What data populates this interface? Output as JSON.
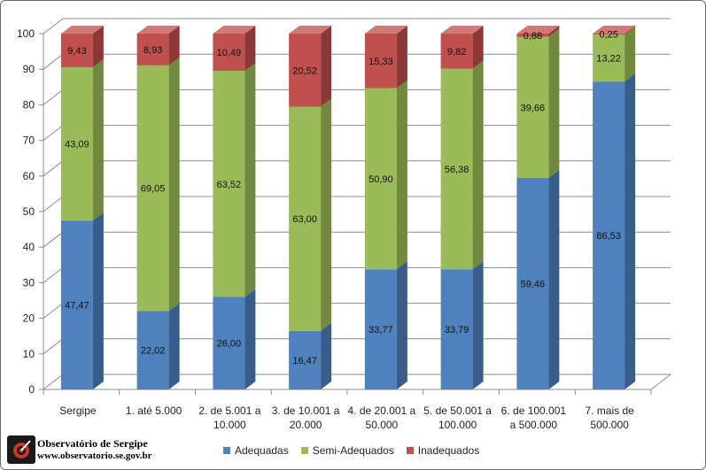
{
  "chart_data": {
    "type": "bar",
    "stacked": true,
    "three_d": true,
    "categories": [
      [
        "Sergipe"
      ],
      [
        "1. até 5.000"
      ],
      [
        "2. de 5.001 a",
        "10.000"
      ],
      [
        "3. de 10.001 a",
        "20.000"
      ],
      [
        "4. de 20.001 a",
        "50.000"
      ],
      [
        "5. de 50.001 a",
        "100.000"
      ],
      [
        "6. de 100.001",
        "a 500.000"
      ],
      [
        "7. mais de",
        "500.000"
      ]
    ],
    "series": [
      {
        "name": "Adequadas",
        "color": "#4f81bd",
        "side": "#385d8a",
        "top": "#6b96cc",
        "values": [
          47.47,
          22.02,
          26.0,
          16.47,
          33.77,
          33.79,
          59.46,
          86.53
        ],
        "labels": [
          "47,47",
          "22,02",
          "26,00",
          "16,47",
          "33,77",
          "33,79",
          "59,46",
          "86,53"
        ]
      },
      {
        "name": "Semi-Adequados",
        "color": "#9bbb59",
        "side": "#71893f",
        "top": "#b3cc7c",
        "values": [
          43.09,
          69.05,
          63.52,
          63.0,
          50.9,
          56.38,
          39.66,
          13.22
        ],
        "labels": [
          "43,09",
          "69,05",
          "63,52",
          "63,00",
          "50,90",
          "56,38",
          "39,66",
          "13,22"
        ]
      },
      {
        "name": "Inadequados",
        "color": "#c0504d",
        "side": "#8c3836",
        "top": "#d07a78",
        "values": [
          9.43,
          8.93,
          10.49,
          20.52,
          15.33,
          9.82,
          0.88,
          0.25
        ],
        "labels": [
          "9,43",
          "8,93",
          "10,49",
          "20,52",
          "15,33",
          "9,82",
          "0,88",
          "0,25"
        ]
      }
    ],
    "ylim": [
      0,
      100
    ],
    "yticks": [
      "0",
      "10",
      "20",
      "30",
      "40",
      "50",
      "60",
      "70",
      "80",
      "90",
      "100"
    ],
    "grid": true,
    "legend_position": "bottom"
  },
  "logo": {
    "line1": "Observatório de Sergipe",
    "line2": "www.observatorio.se.gov.br"
  }
}
